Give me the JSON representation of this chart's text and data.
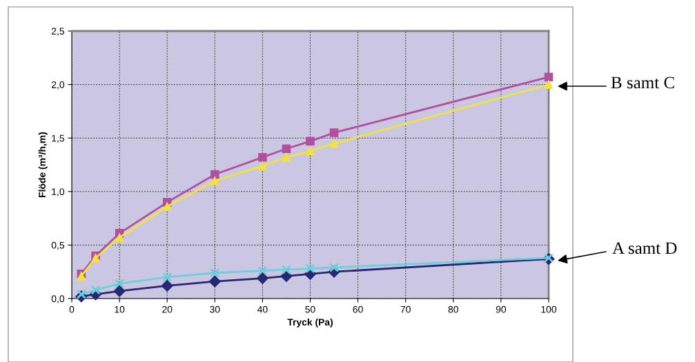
{
  "chart_data": {
    "type": "line",
    "xlabel": "Tryck (Pa)",
    "ylabel": "Flöde (m³/h,m)",
    "x": [
      2,
      5,
      10,
      20,
      30,
      40,
      45,
      50,
      55,
      100
    ],
    "series": [
      {
        "color": "#262873",
        "marker": "diamond",
        "values": [
          0.02,
          0.04,
          0.07,
          0.12,
          0.16,
          0.19,
          0.21,
          0.23,
          0.25,
          0.37
        ]
      },
      {
        "color": "#b44fa0",
        "marker": "square",
        "values": [
          0.23,
          0.4,
          0.61,
          0.9,
          1.16,
          1.32,
          1.4,
          1.47,
          1.55,
          2.07
        ]
      },
      {
        "color": "#f0e43c",
        "marker": "triangle",
        "values": [
          0.21,
          0.38,
          0.57,
          0.86,
          1.1,
          1.24,
          1.32,
          1.38,
          1.45,
          2.0
        ]
      },
      {
        "color": "#6ccfdc",
        "marker": "cross",
        "values": [
          0.04,
          0.08,
          0.14,
          0.2,
          0.24,
          0.26,
          0.27,
          0.28,
          0.29,
          0.38
        ]
      }
    ],
    "xlim": [
      0,
      100
    ],
    "xticks": [
      0,
      10,
      20,
      30,
      40,
      50,
      60,
      70,
      80,
      90,
      100
    ],
    "ylim": [
      0,
      2.5
    ],
    "yticks": [
      {
        "value": 0,
        "label": "0,0"
      },
      {
        "value": 0.5,
        "label": "0,5"
      },
      {
        "value": 1,
        "label": "1,0"
      },
      {
        "value": 1.5,
        "label": "1,5"
      },
      {
        "value": 2,
        "label": "2,0"
      },
      {
        "value": 2.5,
        "label": "2,5"
      }
    ],
    "grid": true,
    "legend": false,
    "line_style": "solid",
    "annotations": [
      "B samt C",
      "A samt D"
    ]
  }
}
